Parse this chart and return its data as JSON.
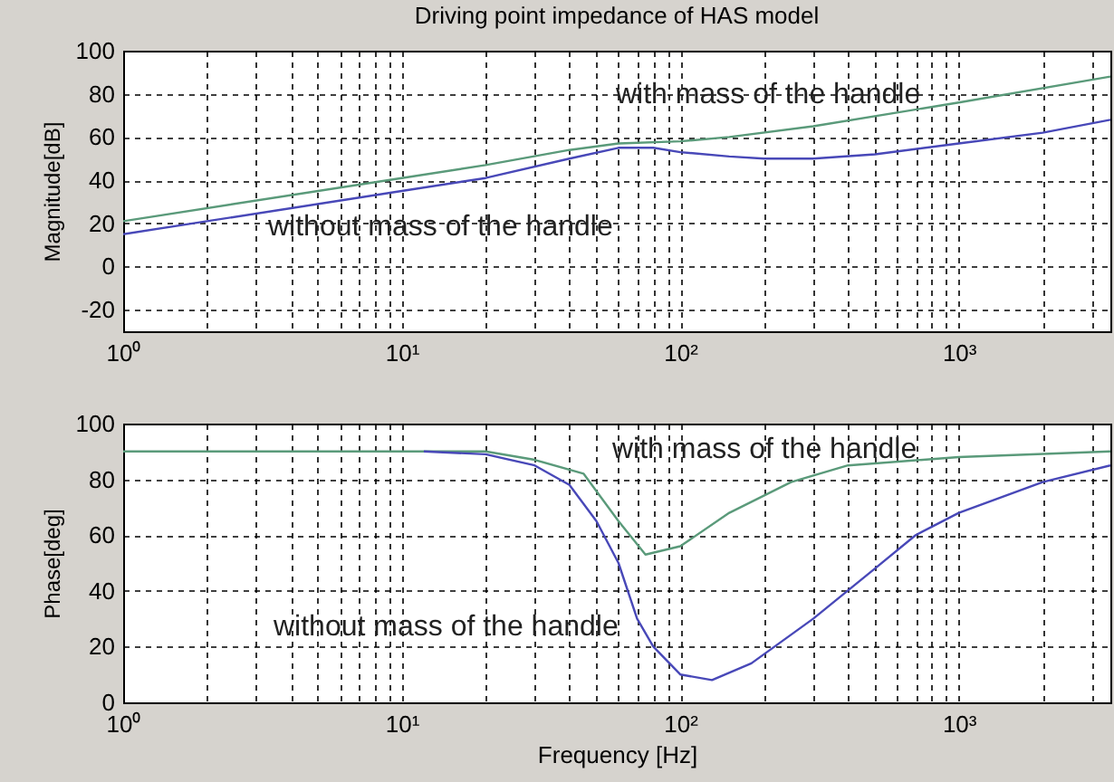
{
  "chart_data": [
    {
      "type": "line",
      "title": "Driving point impedance of HAS model",
      "ylabel": "Magnitude[dB]",
      "log": "x",
      "grid": true,
      "xlim": [
        1,
        3500
      ],
      "ylim": [
        -30,
        100
      ],
      "yticks": [
        -20,
        0,
        20,
        40,
        60,
        80,
        100
      ],
      "xticks": [
        {
          "value": 1,
          "label": "10⁰"
        },
        {
          "value": 2,
          "label": null
        },
        {
          "value": 3,
          "label": null
        },
        {
          "value": 4,
          "label": null
        },
        {
          "value": 5,
          "label": null
        },
        {
          "value": 6,
          "label": null
        },
        {
          "value": 7,
          "label": null
        },
        {
          "value": 8,
          "label": null
        },
        {
          "value": 9,
          "label": null
        },
        {
          "value": 10,
          "label": "10¹"
        },
        {
          "value": 20,
          "label": null
        },
        {
          "value": 30,
          "label": null
        },
        {
          "value": 40,
          "label": null
        },
        {
          "value": 50,
          "label": null
        },
        {
          "value": 60,
          "label": null
        },
        {
          "value": 70,
          "label": null
        },
        {
          "value": 80,
          "label": null
        },
        {
          "value": 90,
          "label": null
        },
        {
          "value": 100,
          "label": "10²"
        },
        {
          "value": 200,
          "label": null
        },
        {
          "value": 300,
          "label": null
        },
        {
          "value": 400,
          "label": null
        },
        {
          "value": 500,
          "label": null
        },
        {
          "value": 600,
          "label": null
        },
        {
          "value": 700,
          "label": null
        },
        {
          "value": 800,
          "label": null
        },
        {
          "value": 900,
          "label": null
        },
        {
          "value": 1000,
          "label": "10³"
        },
        {
          "value": 2000,
          "label": null
        },
        {
          "value": 3000,
          "label": null
        }
      ],
      "series": [
        {
          "name": "with mass of the handle",
          "color": "#5a9a7a",
          "x": [
            1,
            10,
            20,
            40,
            60,
            100,
            150,
            300,
            1000,
            3500
          ],
          "values": [
            21,
            41,
            47,
            54,
            57,
            58,
            60,
            65,
            76,
            88
          ]
        },
        {
          "name": "without mass of the handle",
          "color": "#4848b8",
          "x": [
            1,
            2,
            10,
            20,
            40,
            60,
            80,
            100,
            150,
            200,
            300,
            500,
            1000,
            2000,
            3500
          ],
          "values": [
            15,
            21,
            35,
            41,
            50,
            55,
            55,
            53,
            51,
            50,
            50,
            52,
            57,
            62,
            68
          ]
        }
      ]
    },
    {
      "type": "line",
      "xlabel": "Frequency [Hz]",
      "ylabel": "Phase[deg]",
      "log": "x",
      "grid": true,
      "xlim": [
        1,
        3500
      ],
      "ylim": [
        0,
        100
      ],
      "yticks": [
        0,
        20,
        40,
        60,
        80,
        100
      ],
      "xticks": [
        {
          "value": 1,
          "label": "10⁰"
        },
        {
          "value": 2,
          "label": null
        },
        {
          "value": 3,
          "label": null
        },
        {
          "value": 4,
          "label": null
        },
        {
          "value": 5,
          "label": null
        },
        {
          "value": 6,
          "label": null
        },
        {
          "value": 7,
          "label": null
        },
        {
          "value": 8,
          "label": null
        },
        {
          "value": 9,
          "label": null
        },
        {
          "value": 10,
          "label": "10¹"
        },
        {
          "value": 20,
          "label": null
        },
        {
          "value": 30,
          "label": null
        },
        {
          "value": 40,
          "label": null
        },
        {
          "value": 50,
          "label": null
        },
        {
          "value": 60,
          "label": null
        },
        {
          "value": 70,
          "label": null
        },
        {
          "value": 80,
          "label": null
        },
        {
          "value": 90,
          "label": null
        },
        {
          "value": 100,
          "label": "10²"
        },
        {
          "value": 200,
          "label": null
        },
        {
          "value": 300,
          "label": null
        },
        {
          "value": 400,
          "label": null
        },
        {
          "value": 500,
          "label": null
        },
        {
          "value": 600,
          "label": null
        },
        {
          "value": 700,
          "label": null
        },
        {
          "value": 800,
          "label": null
        },
        {
          "value": 900,
          "label": null
        },
        {
          "value": 1000,
          "label": "10³"
        },
        {
          "value": 2000,
          "label": null
        },
        {
          "value": 3000,
          "label": null
        }
      ],
      "series": [
        {
          "name": "with mass of the handle",
          "color": "#5a9a7a",
          "x": [
            1,
            20,
            30,
            45,
            60,
            75,
            100,
            150,
            250,
            400,
            1000,
            3500
          ],
          "values": [
            90,
            90,
            87,
            82,
            65,
            53,
            56,
            68,
            79,
            85,
            88,
            90
          ]
        },
        {
          "name": "without mass of the handle",
          "color": "#4848b8",
          "x": [
            12,
            20,
            30,
            40,
            50,
            60,
            70,
            80,
            100,
            130,
            180,
            300,
            500,
            700,
            1000,
            2000,
            3500
          ],
          "values": [
            90,
            89,
            85,
            78,
            65,
            50,
            30,
            20,
            10,
            8,
            14,
            30,
            48,
            60,
            68,
            79,
            85
          ]
        }
      ]
    }
  ]
}
